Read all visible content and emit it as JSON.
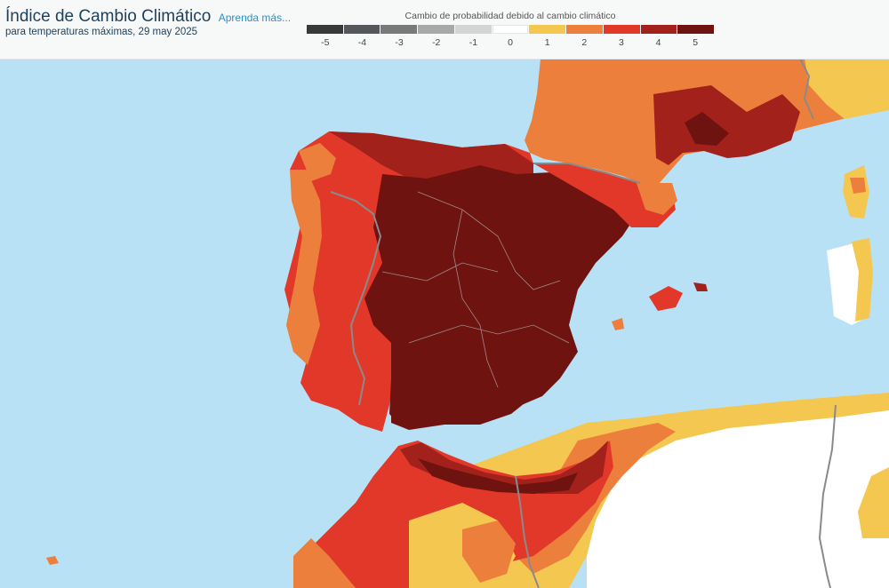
{
  "header": {
    "title": "Índice de Cambio Climático",
    "learn_more": "Aprenda más...",
    "subtitle": "para temperaturas máximas, 29 may 2025"
  },
  "legend": {
    "title": "Cambio de probabilidad debido al cambio climático",
    "items": [
      {
        "label": "-5",
        "color": "#38393b"
      },
      {
        "label": "-4",
        "color": "#55585b"
      },
      {
        "label": "-3",
        "color": "#78797b"
      },
      {
        "label": "-2",
        "color": "#a6a8aa"
      },
      {
        "label": "-1",
        "color": "#d3d4d5"
      },
      {
        "label": "0",
        "color": "#ffffff"
      },
      {
        "label": "1",
        "color": "#f4c750"
      },
      {
        "label": "2",
        "color": "#ec7f3c"
      },
      {
        "label": "3",
        "color": "#e2382a"
      },
      {
        "label": "4",
        "color": "#a3211b"
      },
      {
        "label": "5",
        "color": "#6f1311"
      }
    ]
  },
  "map": {
    "colors": {
      "sea": "#b9e1f6",
      "level1": "#f4c750",
      "level2": "#ec7f3c",
      "level3": "#e2382a",
      "level4": "#a3211b",
      "level5": "#6f1311",
      "zero": "#ffffff",
      "border": "#8a8a8a"
    }
  }
}
